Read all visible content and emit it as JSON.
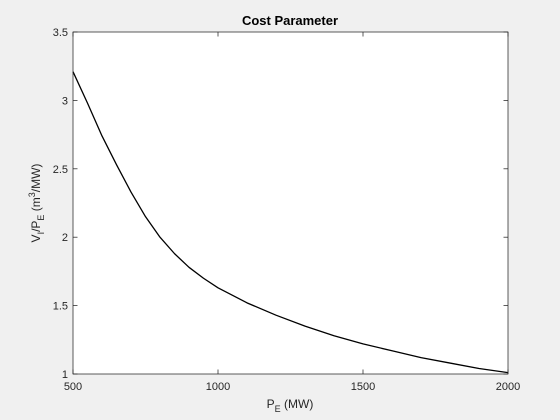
{
  "colors": {
    "figure_background": "#f0f0f0",
    "axes_background": "#ffffff",
    "axis": "#262626",
    "line": "#000000"
  },
  "chart_data": {
    "type": "line",
    "title": "Cost Parameter",
    "xlabel": {
      "main": "P",
      "sub": "E",
      "unit": " (MW)"
    },
    "ylabel": {
      "v": "V",
      "v_sub": "I",
      "slash": "/P",
      "p_sub": "E",
      "unit_open": " (m",
      "unit_sup": "3",
      "unit_close": "/MW)"
    },
    "xlim": [
      500,
      2000
    ],
    "ylim": [
      1,
      3.5
    ],
    "xticks": [
      500,
      1000,
      1500,
      2000
    ],
    "xtick_labels": [
      "500",
      "1000",
      "1500",
      "2000"
    ],
    "yticks": [
      1,
      1.5,
      2,
      2.5,
      3,
      3.5
    ],
    "ytick_labels": [
      "1",
      "1.5",
      "2",
      "2.5",
      "3",
      "3.5"
    ],
    "grid": false,
    "box": true,
    "series": [
      {
        "color": "#000000",
        "x": [
          500,
          550,
          600,
          650,
          700,
          750,
          800,
          850,
          900,
          950,
          1000,
          1100,
          1200,
          1300,
          1400,
          1500,
          1600,
          1700,
          1800,
          1900,
          2000
        ],
        "y": [
          3.21,
          2.98,
          2.74,
          2.53,
          2.33,
          2.15,
          2.0,
          1.88,
          1.78,
          1.7,
          1.63,
          1.52,
          1.43,
          1.35,
          1.28,
          1.22,
          1.17,
          1.12,
          1.08,
          1.04,
          1.01
        ]
      }
    ]
  }
}
